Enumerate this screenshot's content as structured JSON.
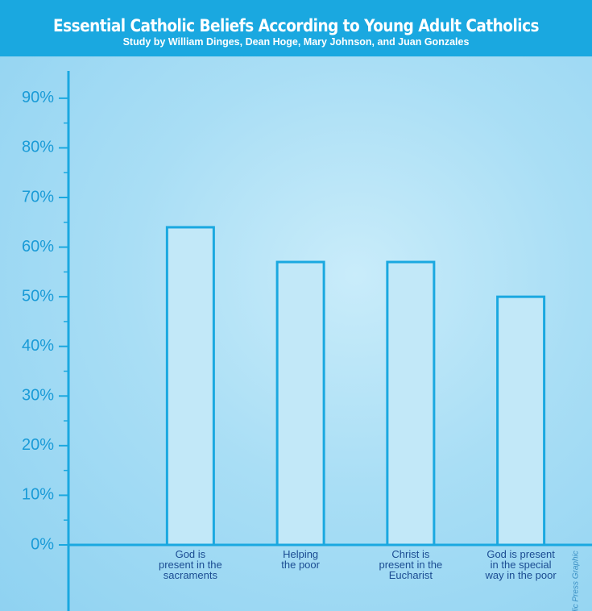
{
  "chart_data": {
    "type": "bar",
    "title": "Essential Catholic Beliefs According to Young Adult Catholics",
    "subtitle": "Study by William Dinges, Dean Hoge, Mary Johnson, and Juan Gonzales",
    "categories": [
      "God is\npresent in the\nsacraments",
      "Helping\nthe poor",
      "Christ is\npresent in the\nEucharist",
      "God is present\nin the special\nway in the poor"
    ],
    "values": [
      64,
      57,
      57,
      50
    ],
    "color": "#c2e8f8",
    "edge_color": "#1aa8e0",
    "ylim": [
      0,
      95.5
    ],
    "yticks": [
      {
        "value": 0,
        "label": "0%"
      },
      {
        "value": 10,
        "label": "10%"
      },
      {
        "value": 20,
        "label": "20%"
      },
      {
        "value": 30,
        "label": "30%"
      },
      {
        "value": 40,
        "label": "40%"
      },
      {
        "value": 50,
        "label": "50%"
      },
      {
        "value": 60,
        "label": "60%"
      },
      {
        "value": 70,
        "label": "70%"
      },
      {
        "value": 80,
        "label": "80%"
      },
      {
        "value": 90,
        "label": "90%"
      }
    ],
    "credit": "Catholic Press Graphic",
    "grid": false
  }
}
